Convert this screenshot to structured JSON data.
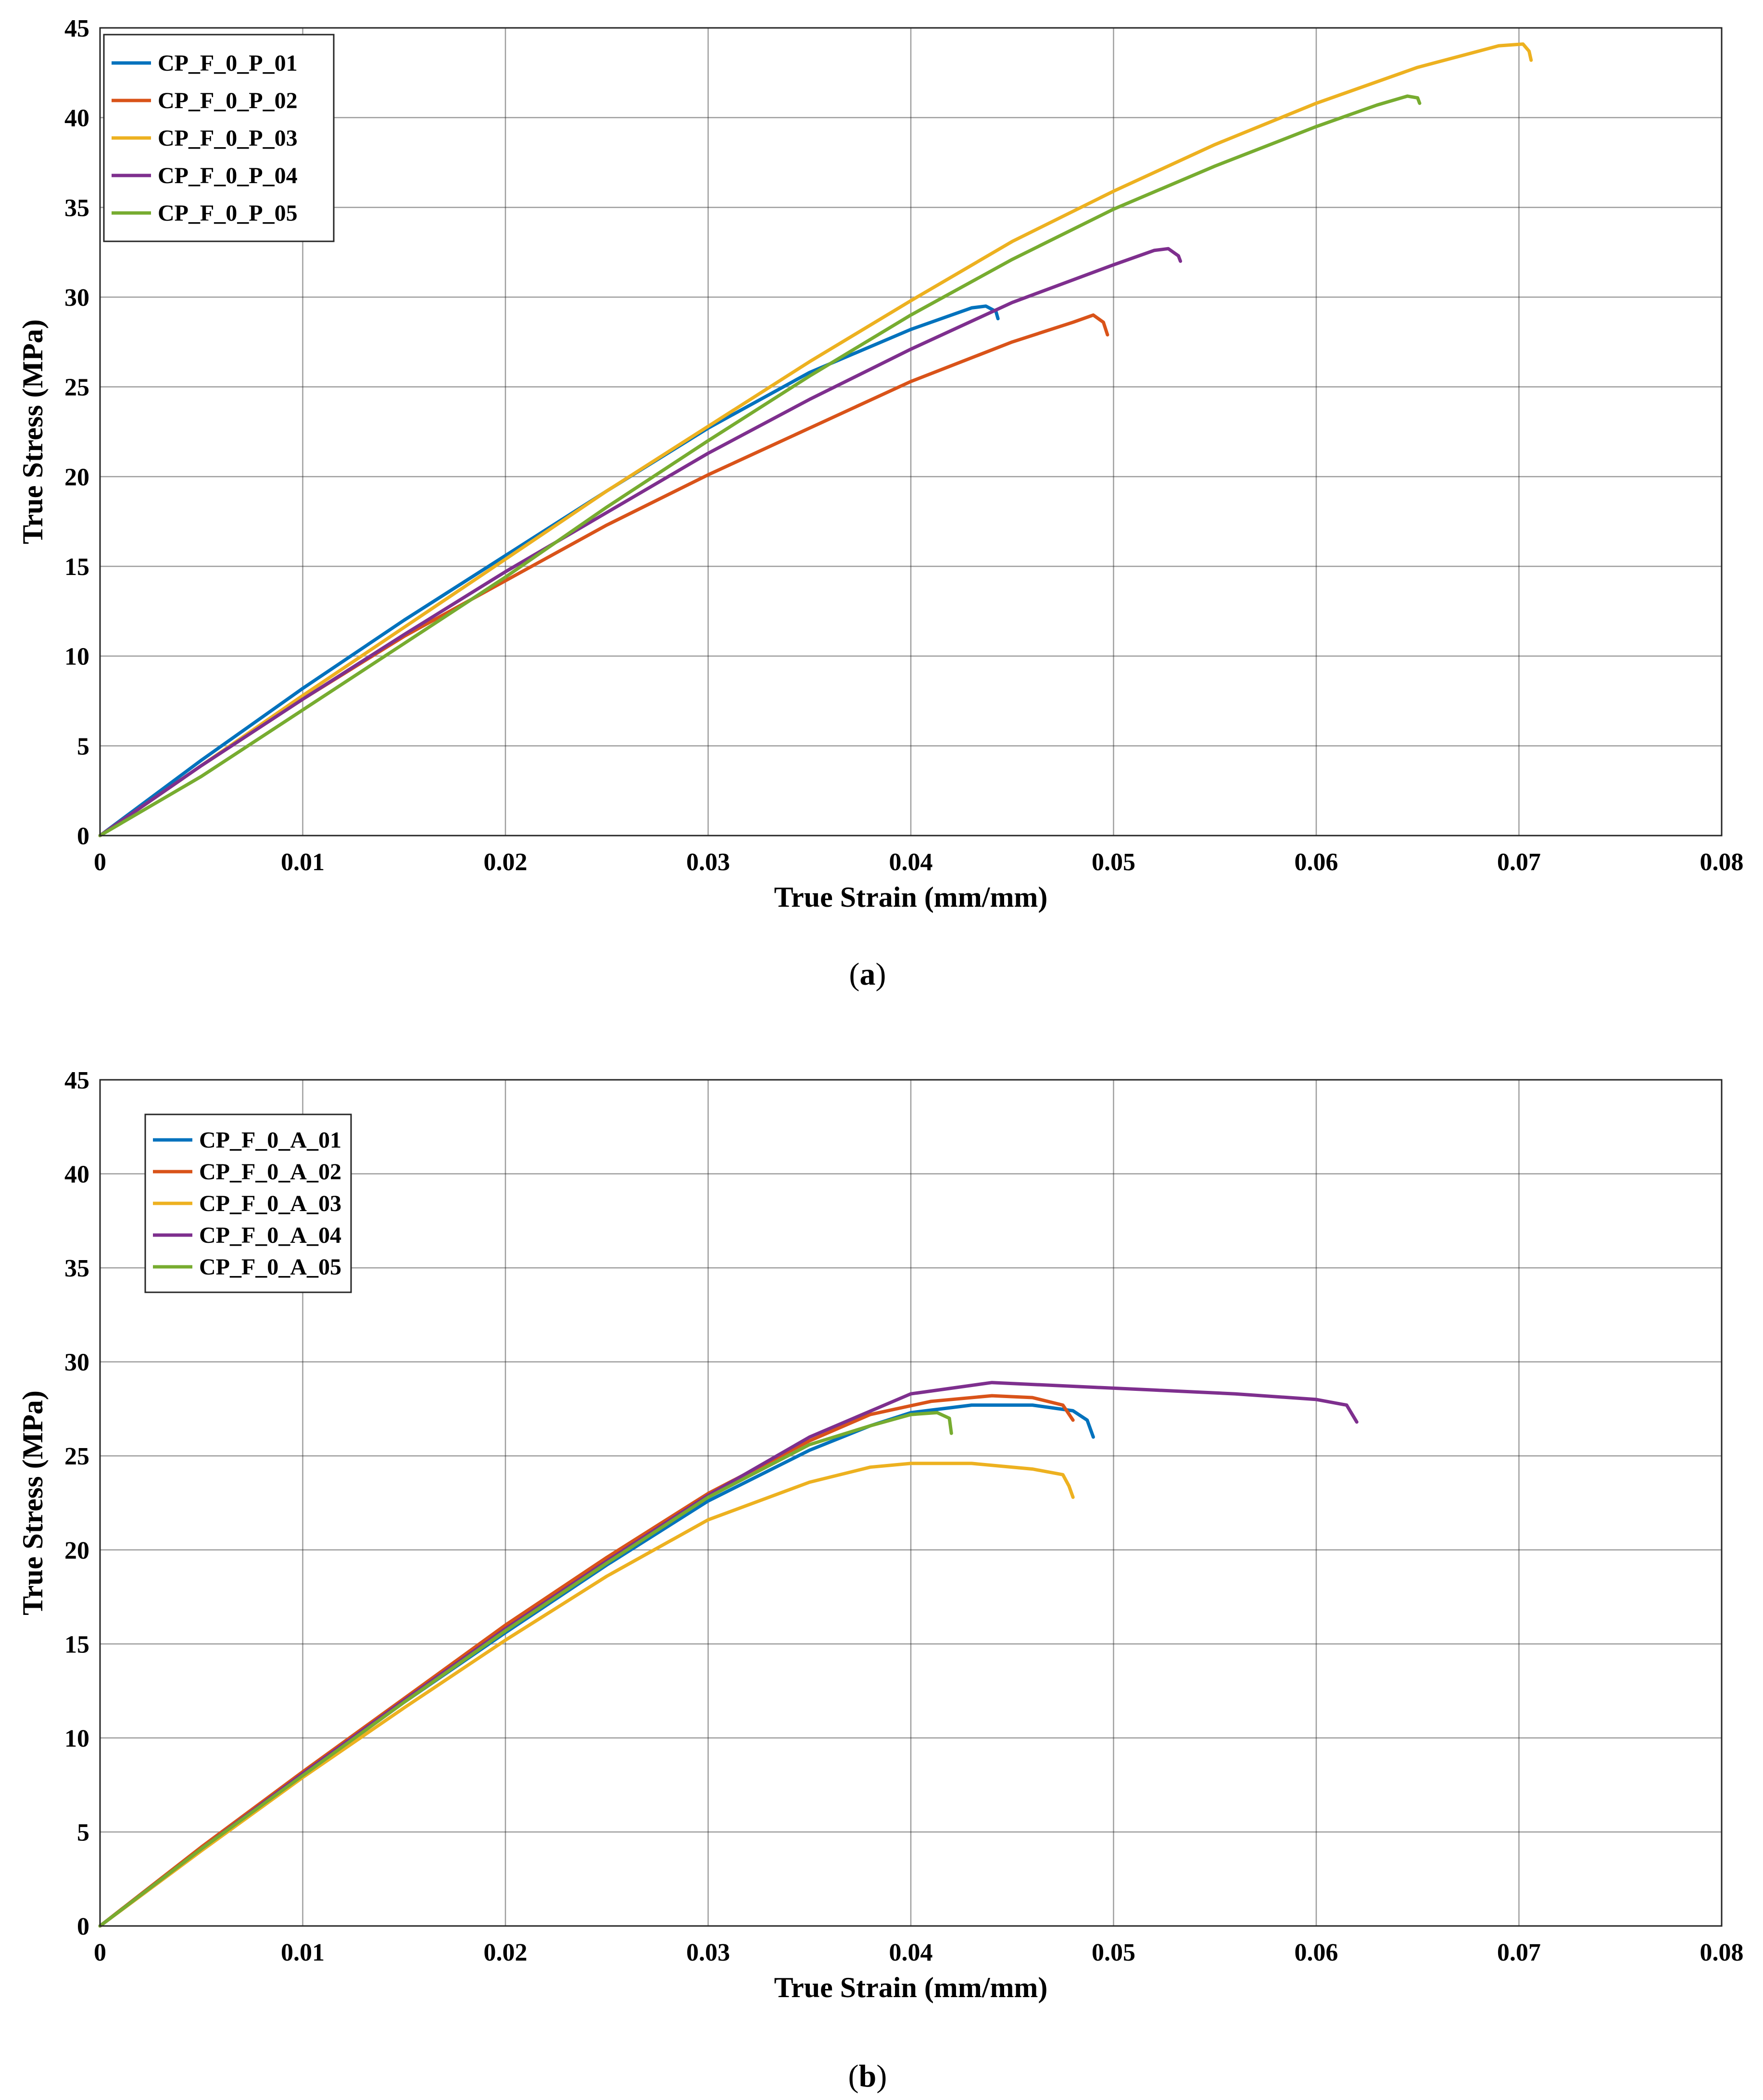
{
  "chart_data": [
    {
      "type": "line",
      "caption_open": "(",
      "caption_letter": "a",
      "caption_close": ")",
      "xlabel": "True Strain (mm/mm)",
      "ylabel": "True Stress (MPa)",
      "xlim": [
        0,
        0.08
      ],
      "ylim": [
        0,
        45
      ],
      "xticks": [
        0,
        0.01,
        0.02,
        0.03,
        0.04,
        0.05,
        0.06,
        0.07,
        0.08
      ],
      "xtick_labels": [
        "0",
        "0.01",
        "0.02",
        "0.03",
        "0.04",
        "0.05",
        "0.06",
        "0.07",
        "0.08"
      ],
      "yticks": [
        0,
        5,
        10,
        15,
        20,
        25,
        30,
        35,
        40,
        45
      ],
      "ytick_labels": [
        "0",
        "5",
        "10",
        "15",
        "20",
        "25",
        "30",
        "35",
        "40",
        "45"
      ],
      "grid": true,
      "legend_position": "top-left",
      "series": [
        {
          "name": "CP_F_0_P_01",
          "color": "#0072BD",
          "points": [
            [
              0,
              0
            ],
            [
              0.005,
              4.2
            ],
            [
              0.01,
              8.2
            ],
            [
              0.015,
              12.0
            ],
            [
              0.02,
              15.6
            ],
            [
              0.025,
              19.2
            ],
            [
              0.03,
              22.7
            ],
            [
              0.035,
              25.8
            ],
            [
              0.04,
              28.2
            ],
            [
              0.043,
              29.4
            ],
            [
              0.0437,
              29.5
            ],
            [
              0.0442,
              29.2
            ],
            [
              0.0443,
              28.8
            ]
          ]
        },
        {
          "name": "CP_F_0_P_02",
          "color": "#D95319",
          "points": [
            [
              0,
              0
            ],
            [
              0.005,
              3.9
            ],
            [
              0.01,
              7.6
            ],
            [
              0.015,
              11.1
            ],
            [
              0.02,
              14.2
            ],
            [
              0.025,
              17.3
            ],
            [
              0.03,
              20.1
            ],
            [
              0.035,
              22.7
            ],
            [
              0.04,
              25.3
            ],
            [
              0.045,
              27.5
            ],
            [
              0.048,
              28.6
            ],
            [
              0.049,
              29.0
            ],
            [
              0.0495,
              28.6
            ],
            [
              0.0497,
              27.9
            ]
          ]
        },
        {
          "name": "CP_F_0_P_03",
          "color": "#EDB120",
          "points": [
            [
              0,
              0
            ],
            [
              0.005,
              3.9
            ],
            [
              0.01,
              7.8
            ],
            [
              0.015,
              11.6
            ],
            [
              0.02,
              15.4
            ],
            [
              0.025,
              19.2
            ],
            [
              0.03,
              22.8
            ],
            [
              0.035,
              26.4
            ],
            [
              0.04,
              29.8
            ],
            [
              0.045,
              33.1
            ],
            [
              0.05,
              35.9
            ],
            [
              0.055,
              38.5
            ],
            [
              0.06,
              40.8
            ],
            [
              0.065,
              42.8
            ],
            [
              0.069,
              44.0
            ],
            [
              0.0702,
              44.1
            ],
            [
              0.0705,
              43.7
            ],
            [
              0.0706,
              43.2
            ]
          ]
        },
        {
          "name": "CP_F_0_P_04",
          "color": "#7E2F8E",
          "points": [
            [
              0,
              0
            ],
            [
              0.005,
              3.9
            ],
            [
              0.01,
              7.6
            ],
            [
              0.015,
              11.2
            ],
            [
              0.02,
              14.7
            ],
            [
              0.025,
              18.0
            ],
            [
              0.03,
              21.3
            ],
            [
              0.035,
              24.3
            ],
            [
              0.04,
              27.1
            ],
            [
              0.045,
              29.7
            ],
            [
              0.05,
              31.8
            ],
            [
              0.052,
              32.6
            ],
            [
              0.0527,
              32.7
            ],
            [
              0.0532,
              32.3
            ],
            [
              0.0533,
              32.0
            ]
          ]
        },
        {
          "name": "CP_F_0_P_05",
          "color": "#77AC30",
          "points": [
            [
              0,
              0
            ],
            [
              0.005,
              3.3
            ],
            [
              0.01,
              7.0
            ],
            [
              0.015,
              10.7
            ],
            [
              0.02,
              14.4
            ],
            [
              0.025,
              18.3
            ],
            [
              0.03,
              22.0
            ],
            [
              0.035,
              25.6
            ],
            [
              0.04,
              29.0
            ],
            [
              0.045,
              32.1
            ],
            [
              0.05,
              34.9
            ],
            [
              0.055,
              37.3
            ],
            [
              0.06,
              39.5
            ],
            [
              0.063,
              40.7
            ],
            [
              0.0645,
              41.2
            ],
            [
              0.065,
              41.1
            ],
            [
              0.0651,
              40.8
            ]
          ]
        }
      ],
      "legend": [
        "CP_F_0_P_01",
        "CP_F_0_P_02",
        "CP_F_0_P_03",
        "CP_F_0_P_04",
        "CP_F_0_P_05"
      ]
    },
    {
      "type": "line",
      "caption_open": "(",
      "caption_letter": "b",
      "caption_close": ")",
      "xlabel": "True Strain (mm/mm)",
      "ylabel": "True Stress (MPa)",
      "xlim": [
        0,
        0.08
      ],
      "ylim": [
        0,
        45
      ],
      "xticks": [
        0,
        0.01,
        0.02,
        0.03,
        0.04,
        0.05,
        0.06,
        0.07,
        0.08
      ],
      "xtick_labels": [
        "0",
        "0.01",
        "0.02",
        "0.03",
        "0.04",
        "0.05",
        "0.06",
        "0.07",
        "0.08"
      ],
      "yticks": [
        0,
        5,
        10,
        15,
        20,
        25,
        30,
        35,
        40,
        45
      ],
      "ytick_labels": [
        "0",
        "5",
        "10",
        "15",
        "20",
        "25",
        "30",
        "35",
        "40",
        "45"
      ],
      "grid": true,
      "legend_position": "top-left",
      "series": [
        {
          "name": "CP_F_0_A_01",
          "color": "#0072BD",
          "points": [
            [
              0,
              0
            ],
            [
              0.005,
              4.1
            ],
            [
              0.01,
              8.0
            ],
            [
              0.015,
              11.9
            ],
            [
              0.02,
              15.6
            ],
            [
              0.025,
              19.2
            ],
            [
              0.03,
              22.6
            ],
            [
              0.035,
              25.3
            ],
            [
              0.038,
              26.6
            ],
            [
              0.04,
              27.3
            ],
            [
              0.043,
              27.7
            ],
            [
              0.046,
              27.7
            ],
            [
              0.048,
              27.4
            ],
            [
              0.0487,
              26.9
            ],
            [
              0.049,
              26.0
            ]
          ]
        },
        {
          "name": "CP_F_0_A_02",
          "color": "#D95319",
          "points": [
            [
              0,
              0
            ],
            [
              0.005,
              4.2
            ],
            [
              0.01,
              8.2
            ],
            [
              0.015,
              12.1
            ],
            [
              0.02,
              16.0
            ],
            [
              0.025,
              19.6
            ],
            [
              0.03,
              23.0
            ],
            [
              0.035,
              25.8
            ],
            [
              0.038,
              27.2
            ],
            [
              0.041,
              27.9
            ],
            [
              0.044,
              28.2
            ],
            [
              0.046,
              28.1
            ],
            [
              0.0475,
              27.7
            ],
            [
              0.048,
              26.9
            ]
          ]
        },
        {
          "name": "CP_F_0_A_03",
          "color": "#EDB120",
          "points": [
            [
              0,
              0
            ],
            [
              0.005,
              4.0
            ],
            [
              0.01,
              7.9
            ],
            [
              0.015,
              11.6
            ],
            [
              0.02,
              15.2
            ],
            [
              0.025,
              18.6
            ],
            [
              0.03,
              21.6
            ],
            [
              0.035,
              23.6
            ],
            [
              0.038,
              24.4
            ],
            [
              0.04,
              24.6
            ],
            [
              0.043,
              24.6
            ],
            [
              0.046,
              24.3
            ],
            [
              0.0475,
              24.0
            ],
            [
              0.0478,
              23.4
            ],
            [
              0.048,
              22.8
            ]
          ]
        },
        {
          "name": "CP_F_0_A_04",
          "color": "#7E2F8E",
          "points": [
            [
              0,
              0
            ],
            [
              0.005,
              4.1
            ],
            [
              0.01,
              8.1
            ],
            [
              0.015,
              12.0
            ],
            [
              0.02,
              15.8
            ],
            [
              0.025,
              19.4
            ],
            [
              0.03,
              22.9
            ],
            [
              0.035,
              26.0
            ],
            [
              0.04,
              28.3
            ],
            [
              0.044,
              28.9
            ],
            [
              0.048,
              28.7
            ],
            [
              0.052,
              28.5
            ],
            [
              0.056,
              28.3
            ],
            [
              0.06,
              28.0
            ],
            [
              0.0615,
              27.7
            ],
            [
              0.062,
              26.8
            ]
          ]
        },
        {
          "name": "CP_F_0_A_05",
          "color": "#77AC30",
          "points": [
            [
              0,
              0
            ],
            [
              0.005,
              4.1
            ],
            [
              0.01,
              8.0
            ],
            [
              0.015,
              11.9
            ],
            [
              0.02,
              15.7
            ],
            [
              0.025,
              19.3
            ],
            [
              0.03,
              22.8
            ],
            [
              0.035,
              25.6
            ],
            [
              0.038,
              26.6
            ],
            [
              0.04,
              27.2
            ],
            [
              0.0413,
              27.3
            ],
            [
              0.0419,
              27.0
            ],
            [
              0.042,
              26.2
            ]
          ]
        }
      ],
      "legend": [
        "CP_F_0_A_01",
        "CP_F_0_A_02",
        "CP_F_0_A_03",
        "CP_F_0_A_04",
        "CP_F_0_A_05"
      ]
    }
  ]
}
